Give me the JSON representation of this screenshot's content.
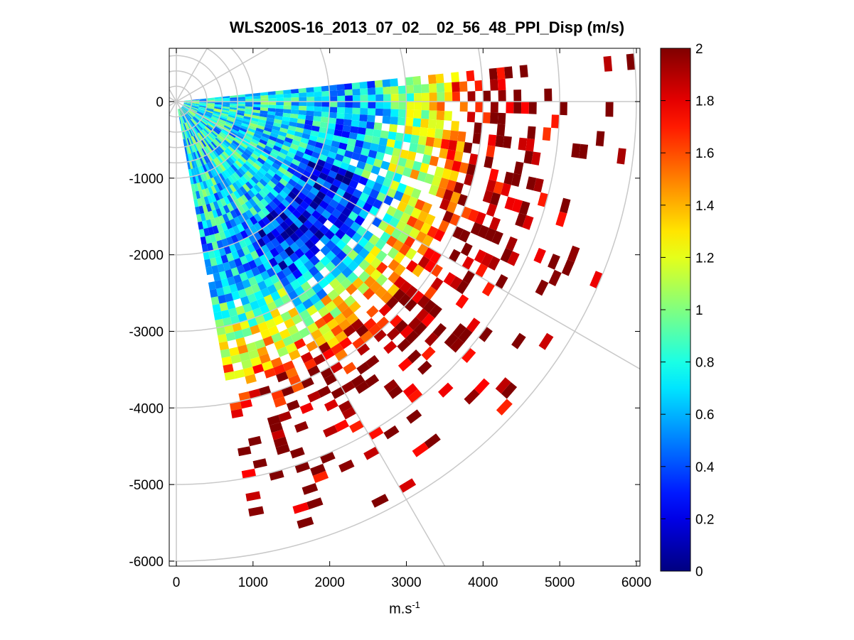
{
  "chart_data": {
    "type": "heatmap",
    "subtype": "polar PPI scan (range-azimuth sector)",
    "title": "WLS200S-16_2013_07_02__02_56_48_PPI_Disp (m/s)",
    "xlabel_text": "m.s",
    "xlabel_exponent": "-1",
    "xlim": [
      -100,
      6000
    ],
    "ylim": [
      -6100,
      650
    ],
    "x_ticks": [
      "0",
      "1000",
      "2000",
      "3000",
      "4000",
      "5000",
      "6000"
    ],
    "y_ticks": [
      "0",
      "-1000",
      "-2000",
      "-3000",
      "-4000",
      "-5000",
      "-6000"
    ],
    "colorbar": {
      "colormap": "jet",
      "range": [
        0,
        2
      ],
      "ticks": [
        "0",
        "0.2",
        "0.4",
        "0.6",
        "0.8",
        "1",
        "1.2",
        "1.4",
        "1.6",
        "1.8",
        "2"
      ]
    },
    "grid": {
      "range_rings_m": [
        1000,
        2000,
        3000,
        4000,
        5000,
        6000
      ],
      "ring_spacing_inner_m": 200,
      "inner_ring_max_m": 1000,
      "radial_spokes_deg": [
        0,
        30,
        60,
        90,
        120,
        150
      ],
      "color": "#c8c8c8"
    },
    "scan": {
      "azimuth_start_deg": 6,
      "azimuth_end_deg": -80,
      "beam_width_deg": 2,
      "range_gate_m": 100,
      "min_range_m": 100,
      "max_range_m": 6000
    },
    "profile": {
      "description": "dispersion increases with range: cyan near origin, blue/cyan patch ~2000-3000 m, mixed green/yellow ~3000-4000 m, dark red saturation beyond ~4000 m, sparse cells at far range",
      "range_bins_m": [
        500,
        1000,
        1500,
        2000,
        2500,
        3000,
        3500,
        4000,
        4500,
        5000,
        5500,
        6000
      ],
      "typical_value": [
        0.75,
        0.72,
        0.7,
        0.6,
        0.62,
        1.0,
        1.35,
        1.9,
        2.0,
        2.0,
        2.0,
        2.0
      ],
      "coverage": [
        1.0,
        1.0,
        1.0,
        1.0,
        0.98,
        0.9,
        0.75,
        0.55,
        0.35,
        0.2,
        0.1,
        0.05
      ]
    }
  }
}
